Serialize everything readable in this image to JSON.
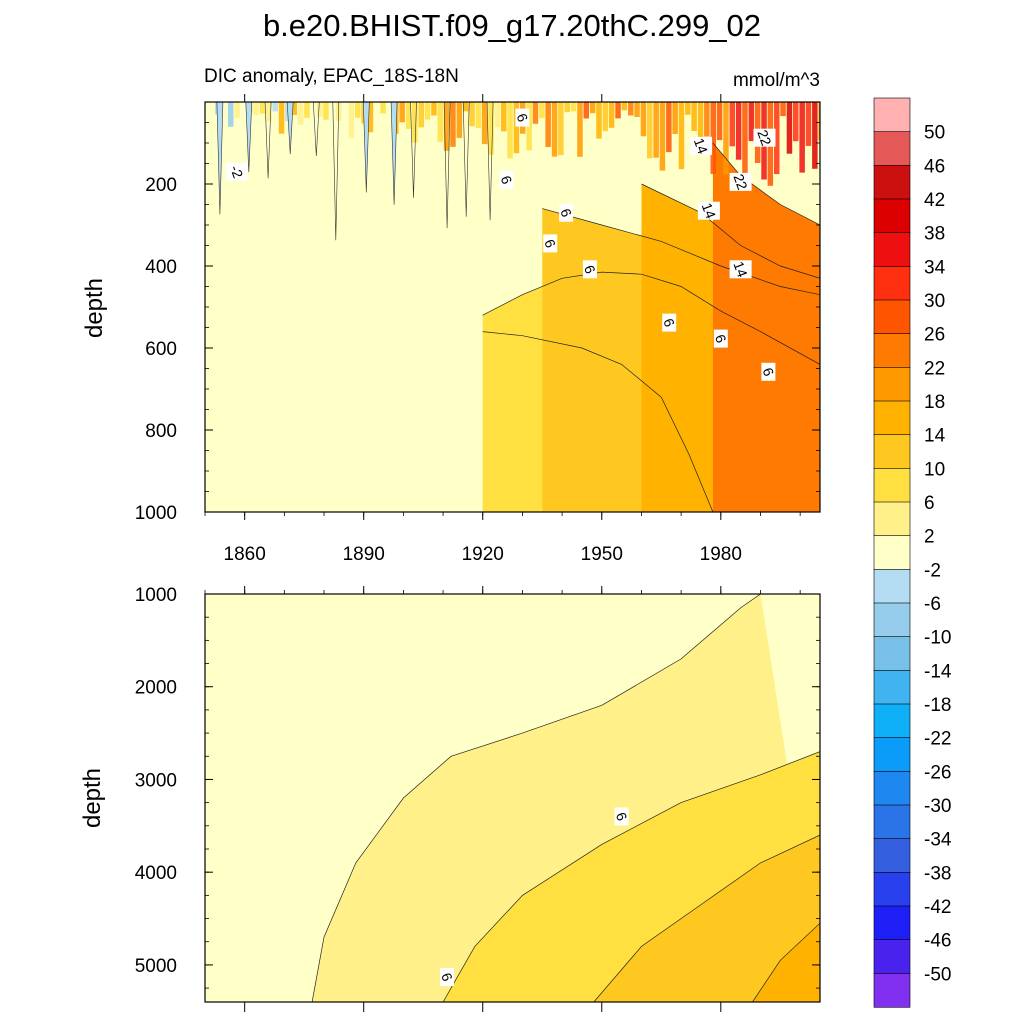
{
  "chart_data": {
    "type": "contour",
    "title": "b.e20.BHIST.f09_g17.20thC.299_02",
    "variable_label": "DIC anomaly, EPAC_18S-18N",
    "units": "mmol/m^3",
    "xrange": [
      1850,
      2005
    ],
    "x_ticks": [
      1860,
      1890,
      1920,
      1950,
      1980
    ],
    "x_tick_labels": [
      "1860",
      "1890",
      "1920",
      "1950",
      "1980"
    ],
    "colorbar": {
      "levels": [
        50,
        46,
        42,
        38,
        34,
        30,
        26,
        22,
        18,
        14,
        10,
        6,
        2,
        -2,
        -6,
        -10,
        -14,
        -18,
        -22,
        -26,
        -30,
        -34,
        -38,
        -42,
        -46,
        -50
      ],
      "colors": [
        "#ffb0b0",
        "#e45858",
        "#cc1010",
        "#dd0000",
        "#ee1010",
        "#ff3010",
        "#ff5500",
        "#ff7a00",
        "#ff9900",
        "#ffb300",
        "#ffc820",
        "#ffe040",
        "#fff08a",
        "#ffffc8",
        "#b4dcf2",
        "#96cdec",
        "#78c0e8",
        "#40b4f0",
        "#10b0f8",
        "#0a9cf8",
        "#1e88f0",
        "#2a74e8",
        "#3460e0",
        "#2840ee",
        "#1e1ef6",
        "#4a22ee",
        "#8030ee"
      ]
    },
    "panels": [
      {
        "name": "upper",
        "ylabel": "depth",
        "ylim": [
          0,
          1000
        ],
        "y_ticks": [
          200,
          400,
          600,
          800,
          1000
        ],
        "y_tick_labels": [
          "200",
          "400",
          "600",
          "800",
          "1000"
        ],
        "contour_labels": [
          {
            "text": "-2",
            "year": 1858,
            "depth": 170
          },
          {
            "text": "6",
            "year": 1930,
            "depth": 38
          },
          {
            "text": "6",
            "year": 1926,
            "depth": 190
          },
          {
            "text": "6",
            "year": 1941,
            "depth": 270
          },
          {
            "text": "6",
            "year": 1937,
            "depth": 345
          },
          {
            "text": "6",
            "year": 1947,
            "depth": 408
          },
          {
            "text": "6",
            "year": 1967,
            "depth": 538
          },
          {
            "text": "6",
            "year": 1980,
            "depth": 577
          },
          {
            "text": "6",
            "year": 1992,
            "depth": 658
          },
          {
            "text": "14",
            "year": 1975,
            "depth": 107
          },
          {
            "text": "14",
            "year": 1977,
            "depth": 265
          },
          {
            "text": "14",
            "year": 1985,
            "depth": 408
          },
          {
            "text": "22",
            "year": 1991,
            "depth": 87
          },
          {
            "text": "22",
            "year": 1985,
            "depth": 195
          }
        ],
        "isolines": [
          {
            "value": 6,
            "points": [
              [
                1920,
                520
              ],
              [
                1930,
                470
              ],
              [
                1940,
                430
              ],
              [
                1950,
                415
              ],
              [
                1960,
                420
              ],
              [
                1970,
                450
              ],
              [
                1980,
                510
              ],
              [
                1990,
                560
              ],
              [
                2005,
                640
              ]
            ]
          },
          {
            "value": 2,
            "points": [
              [
                1920,
                560
              ],
              [
                1930,
                570
              ],
              [
                1945,
                600
              ],
              [
                1955,
                640
              ],
              [
                1965,
                720
              ],
              [
                1972,
                860
              ],
              [
                1978,
                1000
              ]
            ]
          },
          {
            "value": 10,
            "points": [
              [
                1935,
                260
              ],
              [
                1950,
                300
              ],
              [
                1965,
                340
              ],
              [
                1980,
                400
              ],
              [
                1995,
                450
              ],
              [
                2005,
                470
              ]
            ]
          },
          {
            "value": 14,
            "points": [
              [
                1960,
                200
              ],
              [
                1975,
                270
              ],
              [
                1985,
                350
              ],
              [
                1995,
                400
              ],
              [
                2005,
                430
              ]
            ]
          },
          {
            "value": 22,
            "points": [
              [
                1978,
                100
              ],
              [
                1985,
                180
              ],
              [
                1995,
                250
              ],
              [
                2005,
                300
              ]
            ]
          }
        ]
      },
      {
        "name": "lower",
        "ylabel": "depth",
        "ylim": [
          1000,
          5400
        ],
        "y_ticks": [
          1000,
          2000,
          3000,
          4000,
          5000
        ],
        "y_tick_labels": [
          "1000",
          "2000",
          "3000",
          "4000",
          "5000"
        ],
        "contour_labels": [
          {
            "text": "6",
            "year": 1955,
            "depth": 3400
          },
          {
            "text": "6",
            "year": 1911,
            "depth": 5130
          }
        ],
        "isolines": [
          {
            "value": 2,
            "points": [
              [
                1877,
                5400
              ],
              [
                1880,
                4700
              ],
              [
                1888,
                3900
              ],
              [
                1900,
                3200
              ],
              [
                1912,
                2750
              ],
              [
                1930,
                2500
              ],
              [
                1950,
                2200
              ],
              [
                1970,
                1700
              ],
              [
                1985,
                1150
              ],
              [
                1990,
                1000
              ]
            ]
          },
          {
            "value": 6,
            "points": [
              [
                1910,
                5400
              ],
              [
                1918,
                4800
              ],
              [
                1930,
                4250
              ],
              [
                1950,
                3700
              ],
              [
                1970,
                3250
              ],
              [
                1990,
                2950
              ],
              [
                2005,
                2700
              ]
            ]
          },
          {
            "value": 10,
            "points": [
              [
                1948,
                5400
              ],
              [
                1960,
                4800
              ],
              [
                1975,
                4350
              ],
              [
                1990,
                3900
              ],
              [
                2005,
                3600
              ]
            ]
          },
          {
            "value": 14,
            "points": [
              [
                1988,
                5400
              ],
              [
                1995,
                4950
              ],
              [
                2005,
                4550
              ]
            ]
          }
        ]
      }
    ]
  }
}
